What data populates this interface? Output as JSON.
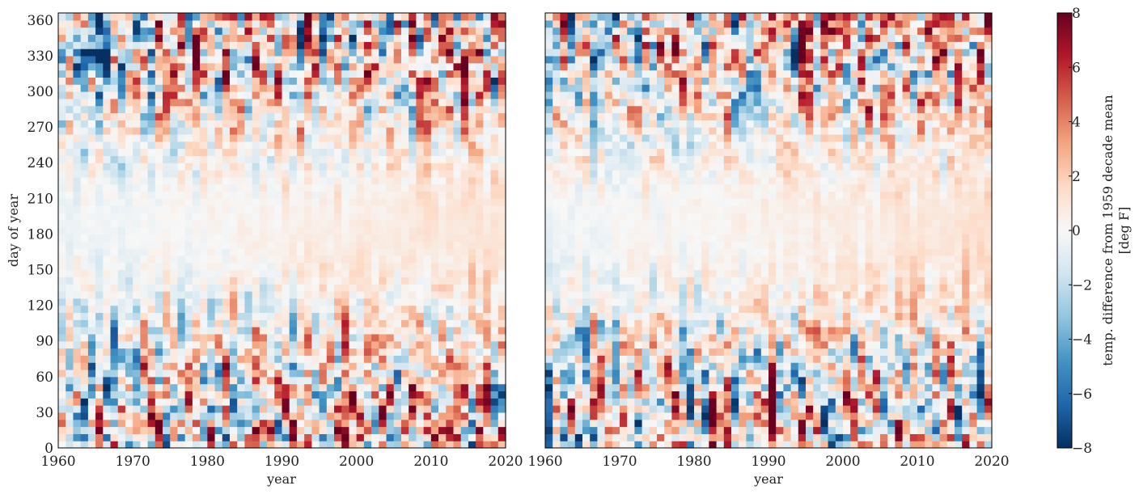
{
  "chart_data": [
    {
      "type": "heatmap",
      "panel": "left",
      "xlabel": "year",
      "ylabel": "day of year",
      "xlim": [
        1960,
        2020
      ],
      "ylim": [
        0,
        366
      ],
      "x_ticks": [
        "1960",
        "1970",
        "1980",
        "1990",
        "2000",
        "2010",
        "2020"
      ],
      "y_ticks": [
        "0",
        "30",
        "60",
        "90",
        "120",
        "150",
        "180",
        "210",
        "240",
        "270",
        "300",
        "330",
        "360"
      ],
      "value_range": [
        -8,
        8
      ],
      "seed": 11
    },
    {
      "type": "heatmap",
      "panel": "right",
      "xlabel": "year",
      "ylabel": "",
      "xlim": [
        1960,
        2020
      ],
      "ylim": [
        0,
        366
      ],
      "x_ticks": [
        "1960",
        "1970",
        "1980",
        "1990",
        "2000",
        "2010",
        "2020"
      ],
      "y_ticks": [],
      "value_range": [
        -8,
        8
      ],
      "seed": 29
    }
  ],
  "colorbar": {
    "label_line1": "temp. difference from 1959 decade mean",
    "label_line2": "[deg F]",
    "ticks": [
      "8",
      "6",
      "4",
      "2",
      "0",
      "−2",
      "−4",
      "−6",
      "−8"
    ],
    "colormap": "RdBu_r",
    "colors": [
      "#053061",
      "#2166ac",
      "#4393c3",
      "#92c5de",
      "#d1e5f0",
      "#f7f7f7",
      "#fddbc7",
      "#f4a582",
      "#d6604d",
      "#b2182b",
      "#67001f"
    ]
  }
}
